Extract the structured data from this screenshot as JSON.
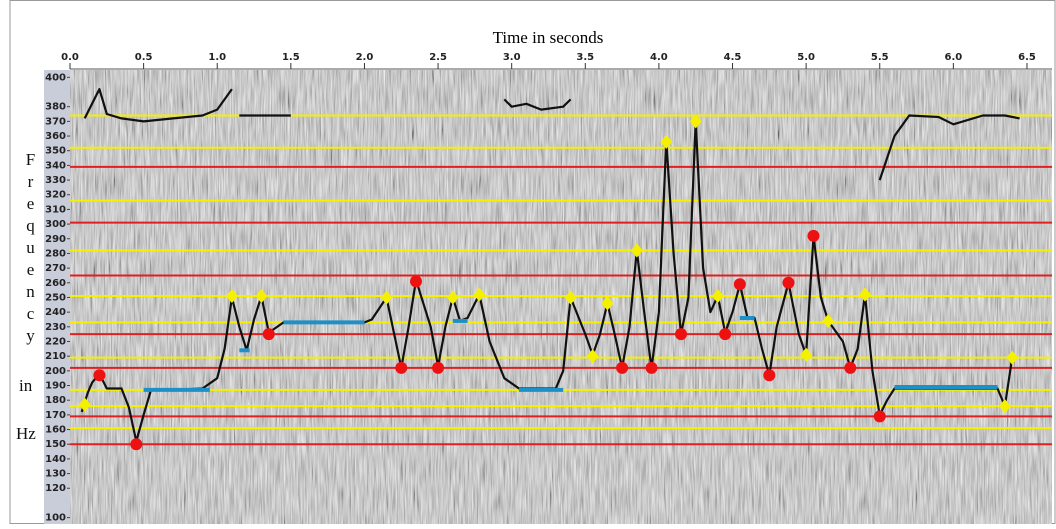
{
  "chart_data": {
    "type": "line",
    "x_label": "Time in seconds",
    "y_label": [
      "Frequency",
      "in",
      "Hz"
    ],
    "xlim": [
      0,
      6.67
    ],
    "ylim": [
      97,
      405
    ],
    "xticks": [
      {
        "value": 0,
        "label": "0.0"
      },
      0.5,
      {
        "value": 1,
        "label": "1.0"
      },
      1.5,
      {
        "value": 2,
        "label": "2.0"
      },
      2.5,
      {
        "value": 3,
        "label": "3.0"
      },
      3.5,
      {
        "value": 4,
        "label": "4.0"
      },
      4.5,
      {
        "value": 5,
        "label": "5.0"
      },
      5.5,
      {
        "value": 6,
        "label": "6.0"
      },
      6.5
    ],
    "yticks": [
      400,
      380,
      370,
      360,
      350,
      340,
      330,
      320,
      310,
      300,
      290,
      280,
      270,
      260,
      250,
      240,
      230,
      220,
      210,
      200,
      190,
      180,
      170,
      160,
      150,
      140,
      130,
      120,
      100
    ],
    "series": [
      {
        "color": "#111111",
        "x": [
          0.08,
          0.12,
          0.15,
          0.2,
          0.25,
          0.35,
          0.4,
          0.45,
          0.5,
          0.55,
          0.7,
          0.9,
          1.0,
          1.05,
          1.1,
          1.15,
          1.2,
          1.25,
          1.3,
          1.35,
          1.45,
          1.7,
          2.0,
          2.05,
          2.15,
          2.25,
          2.3,
          2.35,
          2.45,
          2.5,
          2.55,
          2.6,
          2.65,
          2.7,
          2.78,
          2.85,
          2.95,
          3.05,
          3.3,
          3.35,
          3.4,
          3.5,
          3.55,
          3.6,
          3.65,
          3.7,
          3.75,
          3.8,
          3.85,
          3.9,
          3.95,
          4.0,
          4.05,
          4.1,
          4.15,
          4.2,
          4.25,
          4.3,
          4.35,
          4.4,
          4.45,
          4.5,
          4.55,
          4.6,
          4.65,
          4.7,
          4.75,
          4.8,
          4.88,
          4.95,
          5.0,
          5.05,
          5.1,
          5.15,
          5.25,
          5.3,
          5.35,
          5.4,
          5.45,
          5.5,
          5.55,
          5.6,
          6.0,
          6.3,
          6.35,
          6.4,
          6.42,
          0.1,
          0.2,
          0.25,
          0.35,
          0.5,
          0.7,
          0.9,
          1.0,
          1.1,
          1.12,
          1.15,
          1.5,
          1.52,
          2.95,
          3.0,
          3.1,
          3.2,
          3.35,
          3.4,
          3.42,
          5.5,
          5.6,
          5.7,
          5.9,
          6.0,
          6.2,
          6.35,
          6.45
        ],
        "values": [
          172,
          185,
          192,
          198,
          188,
          188,
          175,
          152,
          170,
          187,
          187,
          188,
          195,
          215,
          250,
          230,
          214,
          235,
          251,
          226,
          233,
          233,
          233,
          235,
          250,
          202,
          230,
          262,
          230,
          203,
          230,
          250,
          234,
          236,
          252,
          220,
          195,
          188,
          188,
          200,
          250,
          225,
          211,
          225,
          246,
          225,
          202,
          230,
          282,
          240,
          202,
          240,
          357,
          280,
          225,
          250,
          370,
          270,
          240,
          251,
          226,
          240,
          259,
          237,
          236,
          215,
          197,
          230,
          260,
          225,
          211,
          292,
          250,
          234,
          220,
          202,
          215,
          252,
          200,
          170,
          180,
          188,
          188,
          188,
          176,
          209,
          null,
          372,
          392,
          375,
          372,
          370,
          372,
          374,
          378,
          392,
          null,
          374,
          374,
          null,
          385,
          380,
          382,
          378,
          380,
          385,
          null,
          330,
          360,
          374,
          373,
          368,
          374,
          374,
          372
        ]
      }
    ],
    "hlines": [
      {
        "color": "#f5f000",
        "values": [
          374,
          352,
          316,
          282,
          251,
          233,
          209,
          187,
          176,
          161
        ]
      },
      {
        "color": "#e02020",
        "values": [
          339,
          301,
          265,
          225,
          202,
          169,
          150
        ]
      }
    ],
    "points": [
      {
        "marker": "diamond",
        "color": "#f5f000",
        "x": [
          0.1,
          1.1,
          1.3,
          2.15,
          2.6,
          2.78,
          3.4,
          3.55,
          3.65,
          3.85,
          4.05,
          4.25,
          4.4,
          5.0,
          5.15,
          5.4,
          6.35,
          6.4
        ],
        "values": [
          177,
          251,
          251,
          250,
          250,
          252,
          250,
          210,
          246,
          282,
          356,
          370,
          251,
          211,
          234,
          252,
          176,
          209
        ]
      },
      {
        "marker": "circle",
        "color": "#ee1111",
        "x": [
          0.2,
          0.45,
          1.35,
          2.25,
          2.35,
          2.5,
          3.75,
          3.95,
          4.15,
          4.45,
          4.55,
          4.75,
          4.88,
          5.05,
          5.3,
          5.5
        ],
        "values": [
          197,
          150,
          225,
          202,
          261,
          202,
          202,
          202,
          225,
          225,
          259,
          197,
          260,
          292,
          202,
          169
        ]
      }
    ],
    "segments": {
      "color": "#1e90c8",
      "x_start": [
        0.5,
        1.15,
        1.45,
        2.6,
        3.05,
        4.55,
        5.6
      ],
      "x_end": [
        0.95,
        1.22,
        2.0,
        2.7,
        3.35,
        4.65,
        6.3
      ],
      "values": [
        187,
        214,
        233,
        234,
        187,
        236,
        189
      ]
    }
  }
}
